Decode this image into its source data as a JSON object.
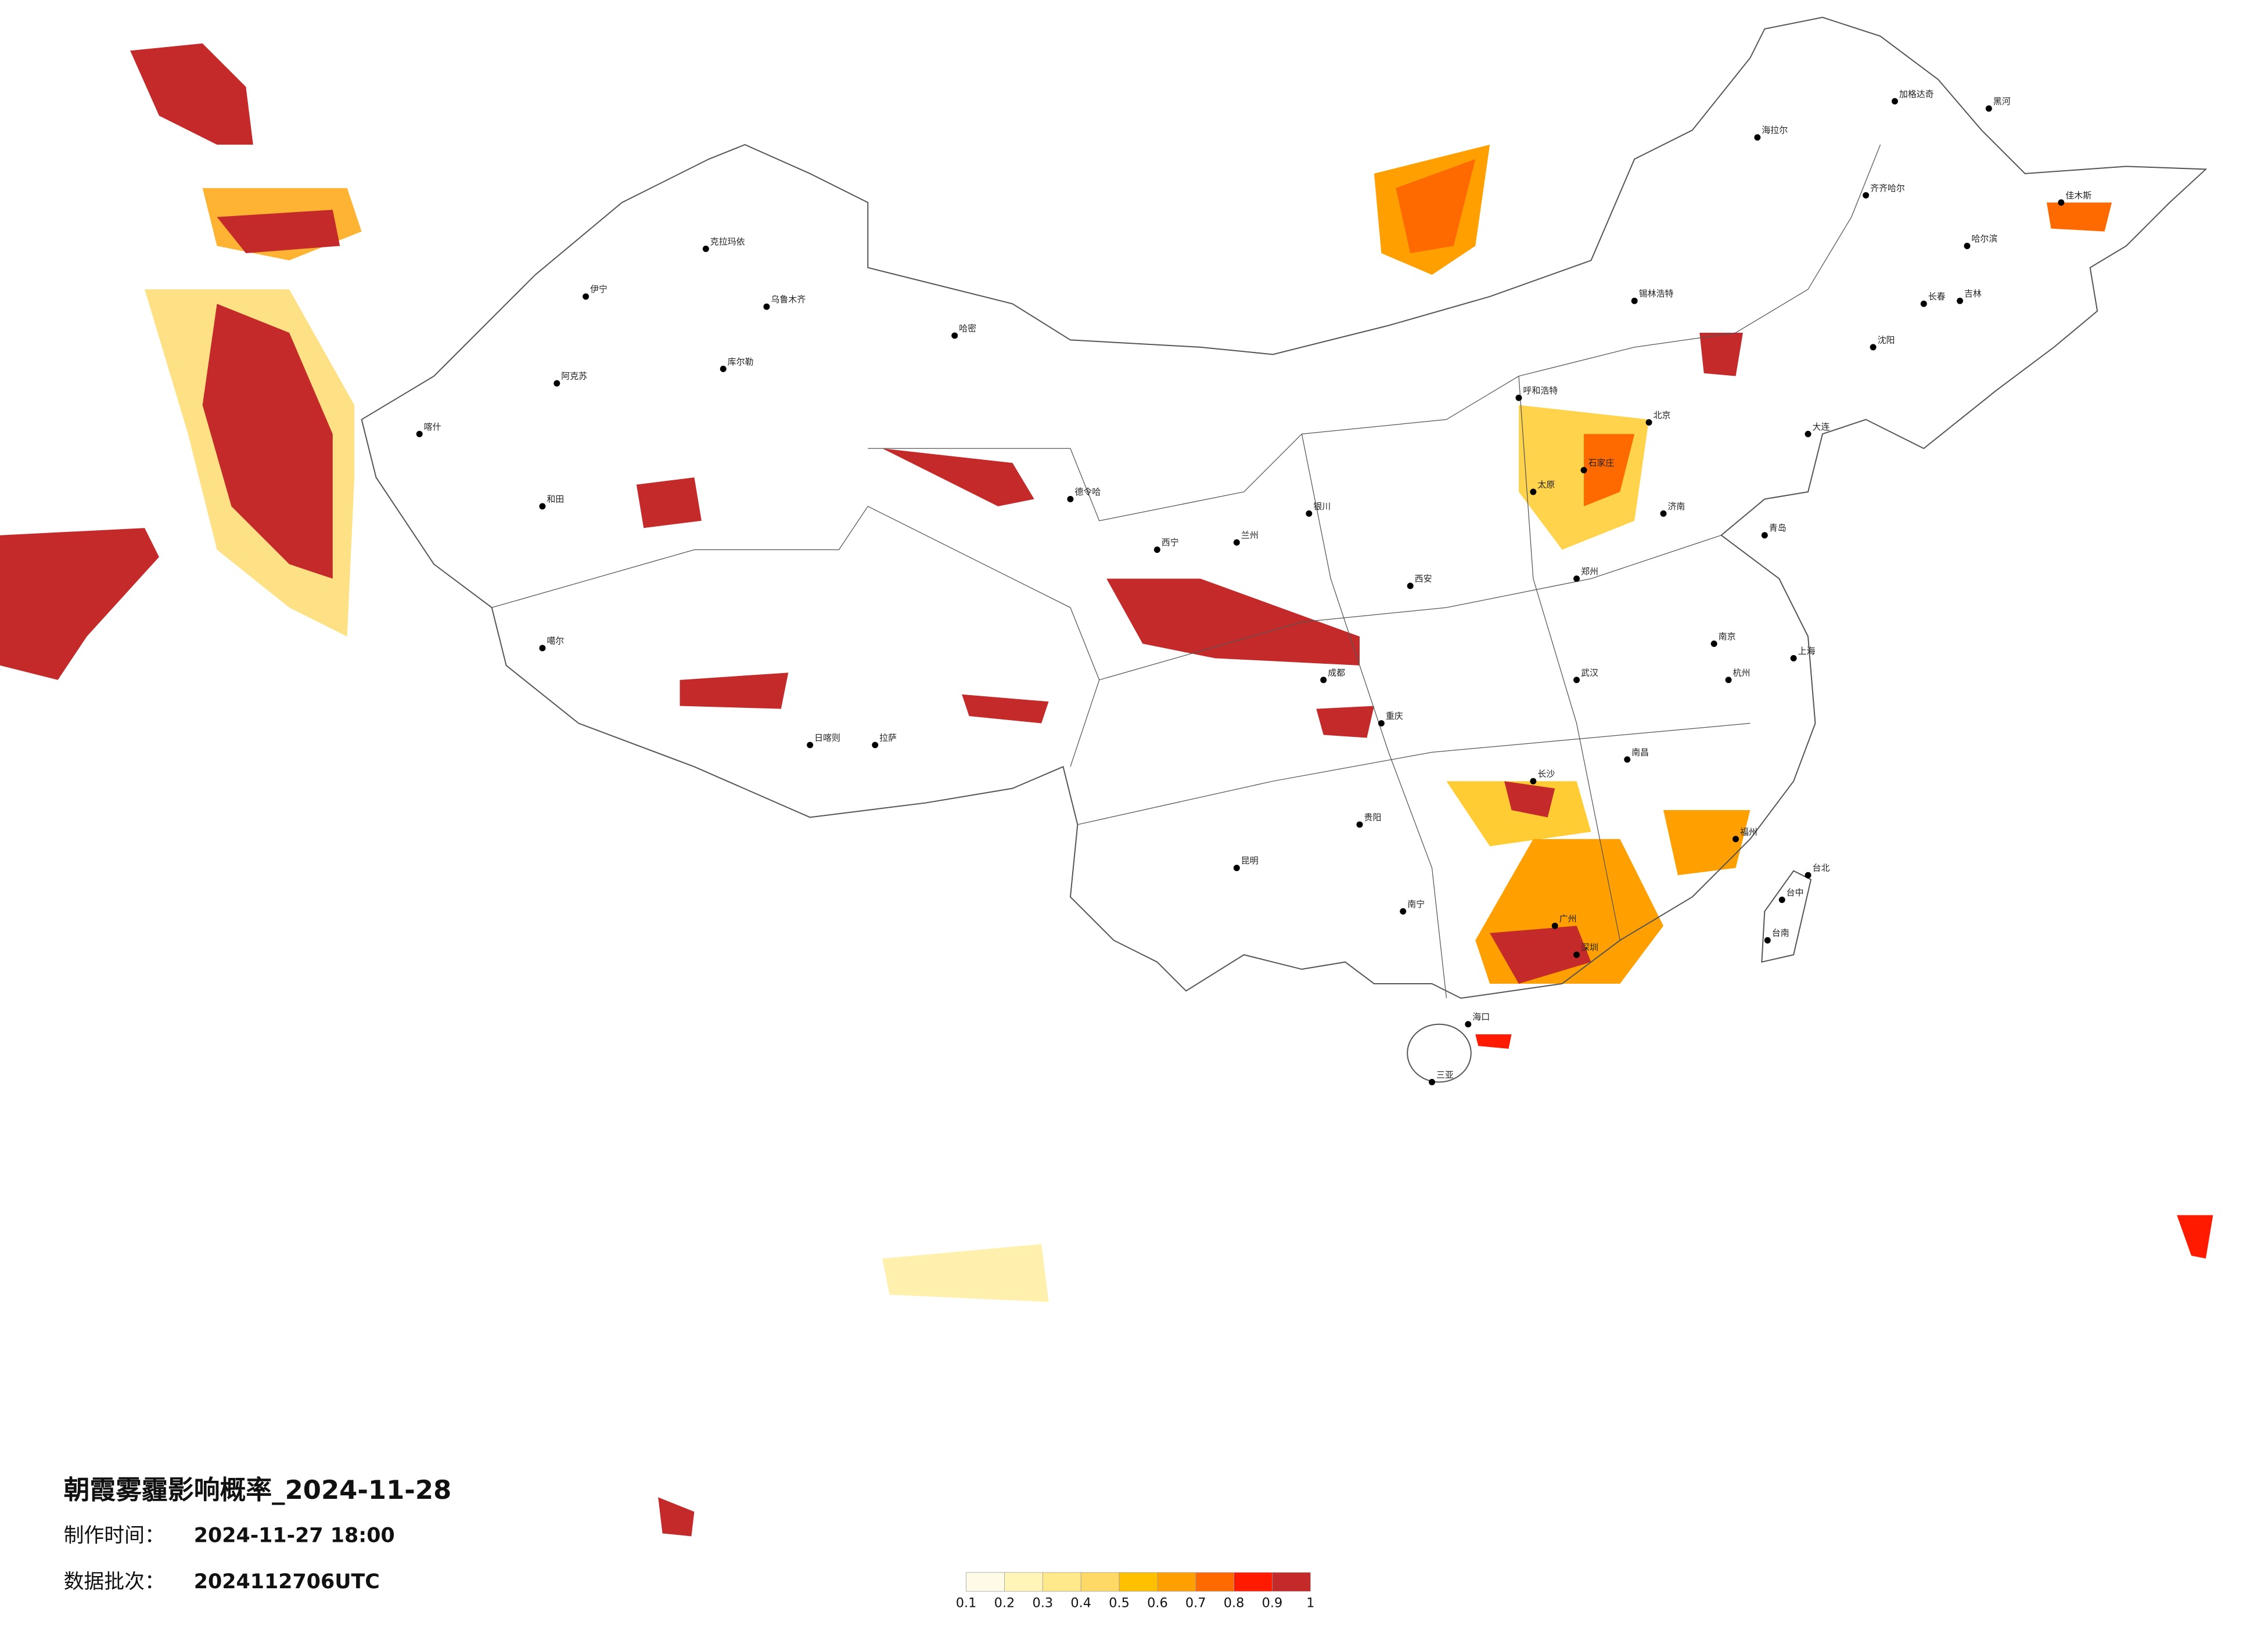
{
  "title": "朝霞雾霾影响概率_2024-11-28",
  "made_time": {
    "label": "制作时间：",
    "value": "2024-11-27 18:00"
  },
  "batch": {
    "label": "数据批次：",
    "value": "2024112706UTC"
  },
  "legend": {
    "colors": [
      "#fffbe6",
      "#fff5b8",
      "#ffe98a",
      "#ffd966",
      "#ffc000",
      "#ffa000",
      "#ff6a00",
      "#ff1a00",
      "#c42a2a"
    ],
    "ticks": [
      0.1,
      0.2,
      0.3,
      0.4,
      0.5,
      0.6,
      0.7,
      0.8,
      0.9,
      1
    ]
  },
  "cities": [
    "加格达奇",
    "黑河",
    "海拉尔",
    "齐齐哈尔",
    "哈尔滨",
    "佳木斯",
    "长春",
    "吉林",
    "沈阳",
    "大连",
    "呼和浩特",
    "锡林浩特",
    "北京",
    "石家庄",
    "太原",
    "济南",
    "青岛",
    "郑州",
    "西安",
    "兰州",
    "西宁",
    "银川",
    "乌鲁木齐",
    "克拉玛依",
    "伊宁",
    "阿克苏",
    "喀什",
    "和田",
    "哈密",
    "库尔勒",
    "拉萨",
    "日喀则",
    "噶尔",
    "德令哈",
    "成都",
    "重庆",
    "贵阳",
    "昆明",
    "南宁",
    "广州",
    "深圳",
    "海口",
    "三亚",
    "长沙",
    "武汉",
    "南昌",
    "杭州",
    "上海",
    "南京",
    "福州",
    "台北",
    "台中",
    "台南"
  ]
}
